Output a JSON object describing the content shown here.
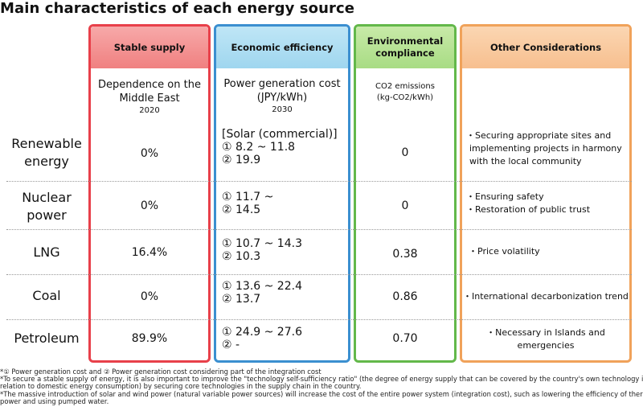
{
  "title": "Main characteristics of each energy source",
  "headers": {
    "stable": "Stable supply",
    "economic": "Economic efficiency",
    "environmental_l1": "Environmental",
    "environmental_l2": "compliance",
    "other": "Other Considerations"
  },
  "subheaders": {
    "stable_l1": "Dependence on the",
    "stable_l2": "Middle East",
    "stable_year": "2020",
    "economic_l1": "Power generation cost",
    "economic_l2": "(JPY/kWh)",
    "economic_year": "2030",
    "env_l1": "CO2 emissions",
    "env_l2": "(kg-CO2/kWh)"
  },
  "rows": [
    {
      "label_l1": "Renewable",
      "label_l2": "energy",
      "stable": "0%",
      "cost_prefix": "[Solar (commercial)]",
      "cost_1": "① 8.2 ~ 11.8",
      "cost_2": "② 19.9",
      "co2": "0",
      "other_1": "・Securing appropriate sites and",
      "other_2": "implementing projects in harmony",
      "other_3": "with the local community"
    },
    {
      "label_l1": "Nuclear",
      "label_l2": "power",
      "stable": "0%",
      "cost_1": "① 11.7 ~",
      "cost_2": "② 14.5",
      "co2": "0",
      "other_1": "・Ensuring safety",
      "other_2": "・Restoration of public trust"
    },
    {
      "label_l1": "LNG",
      "stable": "16.4%",
      "cost_1": "① 10.7 ~ 14.3",
      "cost_2": "② 10.3",
      "co2": "0.38",
      "other_1": "・Price volatility"
    },
    {
      "label_l1": "Coal",
      "stable": "0%",
      "cost_1": "① 13.6 ~ 22.4",
      "cost_2": "② 13.7",
      "co2": "0.86",
      "other_1": "・International decarbonization trend"
    },
    {
      "label_l1": "Petroleum",
      "stable": "89.9%",
      "cost_1": "① 24.9 ~ 27.6",
      "cost_2": "② -",
      "co2": "0.70",
      "other_1": "・Necessary in Islands and",
      "other_2": "emergencies"
    }
  ],
  "footnotes": [
    "*① Power generation cost and ② Power generation cost considering part of the integration cost",
    "*To secure a stable supply of energy, it is also important to improve the \"technology self-sufficiency ratio\" (the degree of energy supply that can be covered by the country's own technology in",
    "relation to domestic energy consumption) by securing core technologies in the supply chain in the country.",
    "*The massive introduction of solar and wind power (natural variable power sources) will increase the cost of the entire power system (integration cost), such as lowering the efficiency of therma",
    "power and using pumped water."
  ],
  "colors": {
    "stable": "#e8404a",
    "economic": "#3b8fd0",
    "environmental": "#63b84a",
    "other": "#f0a25a"
  }
}
